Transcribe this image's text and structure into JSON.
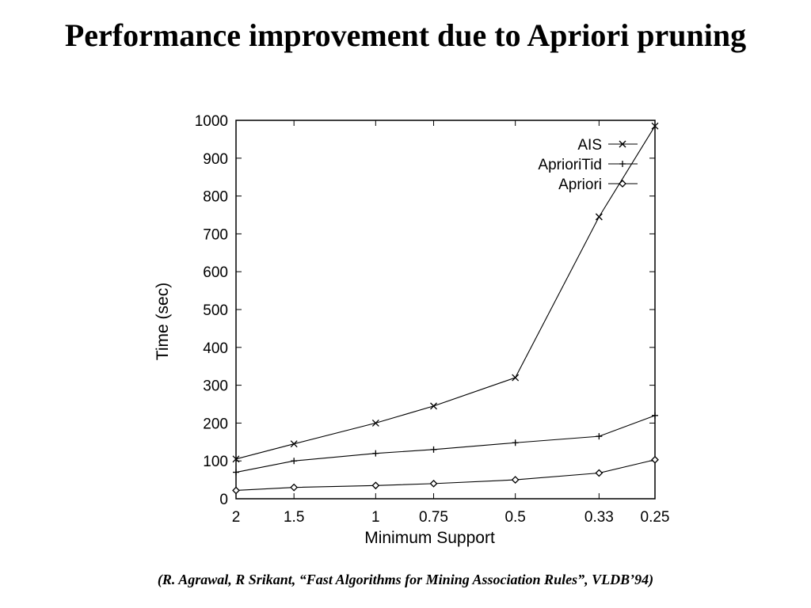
{
  "slide": {
    "title": "Performance improvement due to Apriori pruning",
    "caption": "(R. Agrawal, R Srikant, “Fast Algorithms for Mining Association Rules”, VLDB’94)"
  },
  "chart_data": {
    "type": "line",
    "xlabel": "Minimum Support",
    "ylabel": "Time (sec)",
    "x": [
      "2",
      "1.5",
      "1",
      "0.75",
      "0.5",
      "0.33",
      "0.25"
    ],
    "ylim": [
      0,
      1000
    ],
    "yticks": [
      0,
      100,
      200,
      300,
      400,
      500,
      600,
      700,
      800,
      900,
      1000
    ],
    "grid": false,
    "legend_position": "top-right",
    "series": [
      {
        "name": "AIS",
        "marker": "x",
        "values": [
          105,
          145,
          200,
          245,
          320,
          745,
          985
        ]
      },
      {
        "name": "AprioriTid",
        "marker": "plus",
        "values": [
          70,
          100,
          120,
          130,
          148,
          165,
          220
        ]
      },
      {
        "name": "Apriori",
        "marker": "diamond",
        "values": [
          22,
          30,
          35,
          40,
          50,
          68,
          103
        ]
      }
    ]
  }
}
